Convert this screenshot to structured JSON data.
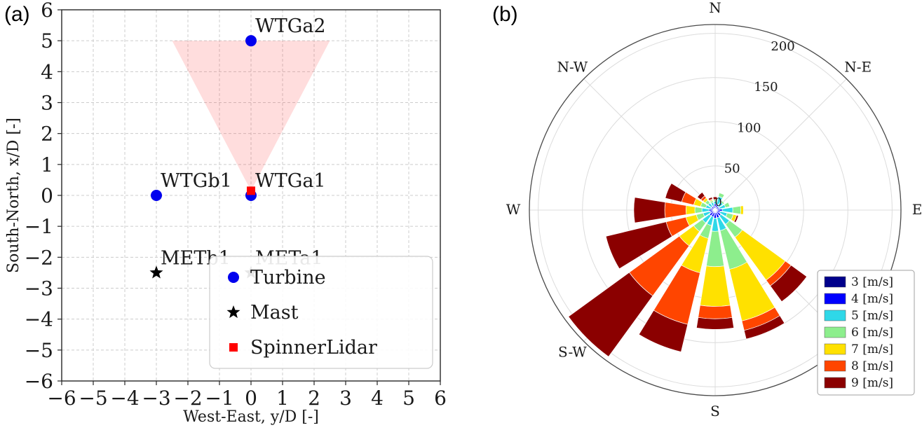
{
  "panel_a_label": "(a)",
  "panel_b_label": "(b)",
  "chart_data": [
    {
      "type": "scatter",
      "panel": "a",
      "xlabel": "West-East, y/D [-]",
      "ylabel": "South-North, x/D [-]",
      "xlim": [
        -6,
        6
      ],
      "ylim": [
        -6,
        6
      ],
      "xticks": [
        -6,
        -5,
        -4,
        -3,
        -2,
        -1,
        0,
        1,
        2,
        3,
        4,
        5,
        6
      ],
      "yticks": [
        -6,
        -5,
        -4,
        -3,
        -2,
        -1,
        0,
        1,
        2,
        3,
        4,
        5,
        6
      ],
      "grid": true,
      "scan_sector": {
        "vertices": [
          [
            -2.5,
            5
          ],
          [
            2.5,
            5
          ],
          [
            0,
            0.15
          ]
        ],
        "fill": "#ff4444",
        "opacity": 0.18
      },
      "series": [
        {
          "name": "Turbine",
          "marker": "circle",
          "color": "#0000ee",
          "points": [
            {
              "x": 0,
              "y": 5,
              "label": "WTGa2"
            },
            {
              "x": -3,
              "y": 0,
              "label": "WTGb1"
            },
            {
              "x": 0,
              "y": 0,
              "label": "WTGa1"
            }
          ]
        },
        {
          "name": "Mast",
          "marker": "star",
          "color": "#000000",
          "points": [
            {
              "x": -3,
              "y": -2.5,
              "label": "METb1"
            },
            {
              "x": 0,
              "y": -2.5,
              "label": "METa1"
            }
          ]
        },
        {
          "name": "SpinnerLidar",
          "marker": "square",
          "color": "#ff0000",
          "points": [
            {
              "x": 0,
              "y": 0.15,
              "label": ""
            }
          ]
        }
      ],
      "legend_labels": [
        "Turbine",
        "Mast",
        "SpinnerLidar"
      ]
    },
    {
      "type": "windrose",
      "panel": "b",
      "rmax": 210,
      "radial_ticks": [
        50,
        100,
        150,
        200
      ],
      "center_tick_label": "0",
      "rlabel_angle_deg": 22.5,
      "spoke_angles_deg": [
        0,
        45,
        90,
        135,
        180,
        225,
        270,
        315
      ],
      "direction_labels": [
        {
          "angle_deg": 0,
          "label": "N"
        },
        {
          "angle_deg": 45,
          "label": "N-E"
        },
        {
          "angle_deg": 90,
          "label": "E"
        },
        {
          "angle_deg": 180,
          "label": "S"
        },
        {
          "angle_deg": 225,
          "label": "S-W"
        },
        {
          "angle_deg": 270,
          "label": "W"
        },
        {
          "angle_deg": 315,
          "label": "N-W"
        }
      ],
      "speed_bins": [
        {
          "label": "3 [m/s]",
          "color": "#00008b"
        },
        {
          "label": "4 [m/s]",
          "color": "#0000ff"
        },
        {
          "label": "5 [m/s]",
          "color": "#2fd8e8"
        },
        {
          "label": "6 [m/s]",
          "color": "#8dee8d"
        },
        {
          "label": "7 [m/s]",
          "color": "#ffe100"
        },
        {
          "label": "8 [m/s]",
          "color": "#ff4500"
        },
        {
          "label": "9 [m/s]",
          "color": "#8b0000"
        }
      ],
      "sector_width_deg": 18,
      "sectors": [
        {
          "dir": "N",
          "angle_deg": 0,
          "counts": [
            4,
            3,
            3,
            2,
            0,
            0,
            3
          ]
        },
        {
          "dir": "NNE",
          "angle_deg": 22.5,
          "counts": [
            3,
            4,
            9,
            4,
            0,
            0,
            0
          ]
        },
        {
          "dir": "NE",
          "angle_deg": 45,
          "counts": [
            2,
            3,
            6,
            2,
            0,
            0,
            0
          ]
        },
        {
          "dir": "ENE",
          "angle_deg": 67.5,
          "counts": [
            2,
            3,
            7,
            5,
            0,
            0,
            0
          ]
        },
        {
          "dir": "E",
          "angle_deg": 90,
          "counts": [
            3,
            5,
            12,
            9,
            3,
            0,
            0
          ]
        },
        {
          "dir": "ESE",
          "angle_deg": 112.5,
          "counts": [
            2,
            4,
            8,
            7,
            4,
            0,
            2
          ]
        },
        {
          "dir": "SE",
          "angle_deg": 135,
          "counts": [
            3,
            5,
            12,
            18,
            60,
            8,
            22
          ]
        },
        {
          "dir": "SSE",
          "angle_deg": 157.5,
          "counts": [
            3,
            6,
            15,
            45,
            60,
            11,
            10
          ]
        },
        {
          "dir": "S",
          "angle_deg": 180,
          "counts": [
            3,
            6,
            15,
            40,
            45,
            14,
            12
          ]
        },
        {
          "dir": "SSW",
          "angle_deg": 202.5,
          "counts": [
            3,
            5,
            10,
            15,
            40,
            60,
            32
          ]
        },
        {
          "dir": "SW",
          "angle_deg": 225,
          "counts": [
            3,
            5,
            10,
            12,
            20,
            70,
            85
          ]
        },
        {
          "dir": "WSW",
          "angle_deg": 247.5,
          "counts": [
            2,
            4,
            8,
            8,
            12,
            23,
            70
          ]
        },
        {
          "dir": "W",
          "angle_deg": 270,
          "counts": [
            3,
            4,
            8,
            8,
            10,
            24,
            35
          ]
        },
        {
          "dir": "WNW",
          "angle_deg": 292.5,
          "counts": [
            2,
            3,
            6,
            6,
            8,
            14,
            19
          ]
        },
        {
          "dir": "NW",
          "angle_deg": 315,
          "counts": [
            2,
            3,
            5,
            4,
            3,
            3,
            5
          ]
        },
        {
          "dir": "NNW",
          "angle_deg": 337.5,
          "counts": [
            2,
            3,
            4,
            2,
            1,
            1,
            2
          ]
        }
      ]
    }
  ]
}
